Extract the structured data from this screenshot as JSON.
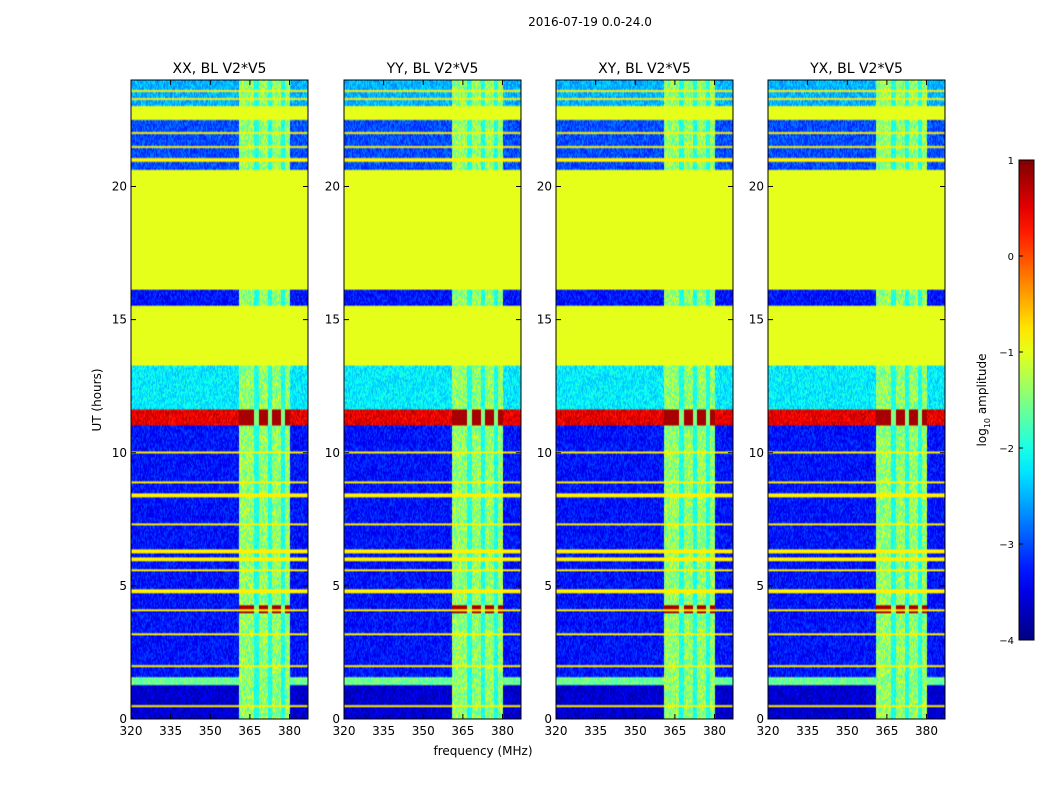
{
  "figure_title": "2016-07-19 0.0-24.0",
  "xlabel": "frequency (MHz)",
  "ylabel": "UT (hours)",
  "colorbar": {
    "label_prefix": "log",
    "label_sub": "10",
    "label_suffix": " amplitude",
    "range": [
      -4,
      1
    ],
    "ticks": [
      "1",
      "0",
      "−1",
      "−2",
      "−3",
      "−4"
    ],
    "tick_values": [
      1,
      0,
      -1,
      -2,
      -3,
      -4
    ],
    "colormap": "jet"
  },
  "chart_data": {
    "type": "heatmap",
    "xlim": [
      320,
      387
    ],
    "ylim": [
      0,
      24
    ],
    "x_ticks": [
      "320",
      "335",
      "350",
      "365",
      "380"
    ],
    "x_tick_values": [
      320,
      335,
      350,
      365,
      380
    ],
    "y_ticks": [
      "0",
      "5",
      "10",
      "15",
      "20"
    ],
    "y_tick_values": [
      0,
      5,
      10,
      15,
      20
    ],
    "x_unit": "MHz",
    "y_unit": "hours (UT)",
    "value_unit": "log10 amplitude",
    "panels": [
      {
        "title": "XX, BL V2*V5",
        "polarization": "XX"
      },
      {
        "title": "YY, BL V2*V5",
        "polarization": "YY"
      },
      {
        "title": "XY, BL V2*V5",
        "polarization": "XY"
      },
      {
        "title": "YX, BL V2*V5",
        "polarization": "YX"
      }
    ],
    "description_rows": [
      {
        "t0": 0.0,
        "t1": 1.3,
        "level": -3.6
      },
      {
        "t0": 1.3,
        "t1": 1.6,
        "level": -1.6
      },
      {
        "t0": 1.6,
        "t1": 11.0,
        "level": -3.3
      },
      {
        "t0": 11.0,
        "t1": 11.6,
        "level": 0.5
      },
      {
        "t0": 11.6,
        "t1": 13.3,
        "level": -2.2
      },
      {
        "t0": 13.3,
        "t1": 15.5,
        "level": -1.0
      },
      {
        "t0": 15.5,
        "t1": 16.1,
        "level": -3.3
      },
      {
        "t0": 16.1,
        "t1": 20.6,
        "level": -1.0
      },
      {
        "t0": 20.6,
        "t1": 22.5,
        "level": -3.0
      },
      {
        "t0": 22.5,
        "t1": 23.0,
        "level": -1.0
      },
      {
        "t0": 23.0,
        "t1": 24.0,
        "level": -2.5
      }
    ],
    "rfi_band_MHz": [
      361,
      380
    ],
    "masked_level": -1.0
  }
}
